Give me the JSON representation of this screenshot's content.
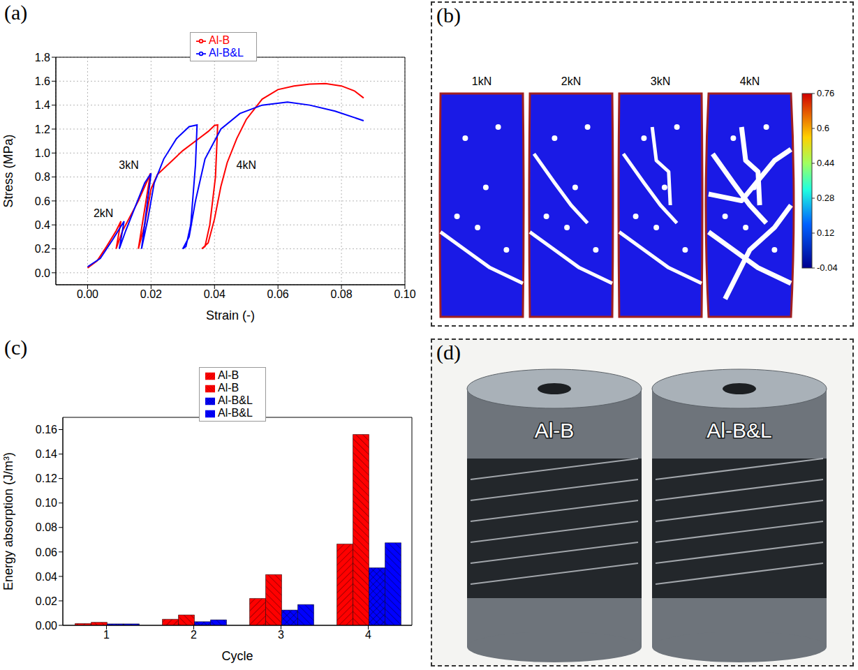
{
  "chart_data": [
    {
      "label": "(a)",
      "type": "line",
      "x_label": "Strain (-)",
      "y_label": "Stress (MPa)",
      "xlim": [
        -0.01,
        0.1
      ],
      "xticks": [
        {
          "value": 0,
          "label": "0.00"
        },
        0.02,
        0.04,
        0.06,
        0.08,
        {
          "value": 0.1,
          "label": "0.10"
        }
      ],
      "ylim": [
        -0.1,
        1.8
      ],
      "yticks": [
        {
          "value": 0,
          "label": "0.0"
        },
        0.2,
        0.4,
        0.6,
        0.8,
        {
          "value": 1,
          "label": "1.0"
        },
        1.2,
        1.4,
        1.6,
        1.8
      ],
      "grid": true,
      "legend": "top",
      "series": [
        {
          "name": "Al-B",
          "color": "#ff0000",
          "x": [
            0,
            0.003,
            0.006,
            0.009,
            0.0105,
            0.009,
            0.011,
            0.013,
            0.016,
            0.019,
            0.0198,
            0.016,
            0.018,
            0.02,
            0.022,
            0.026,
            0.03,
            0.035,
            0.038,
            0.04,
            0.041,
            0.0403,
            0.0385,
            0.037,
            0.036,
            0.038,
            0.04,
            0.042,
            0.044,
            0.047,
            0.05,
            0.055,
            0.06,
            0.065,
            0.07,
            0.075,
            0.08,
            0.084,
            0.087
          ],
          "values": [
            0.04,
            0.1,
            0.22,
            0.35,
            0.43,
            0.2,
            0.35,
            0.45,
            0.6,
            0.78,
            0.83,
            0.2,
            0.4,
            0.7,
            0.82,
            0.92,
            1.02,
            1.12,
            1.18,
            1.23,
            1.235,
            0.8,
            0.4,
            0.22,
            0.2,
            0.25,
            0.45,
            0.72,
            0.92,
            1.12,
            1.28,
            1.45,
            1.53,
            1.56,
            1.575,
            1.58,
            1.56,
            1.52,
            1.46
          ]
        },
        {
          "name": "Al-B&L",
          "color": "#0000ff",
          "x": [
            0,
            0.004,
            0.008,
            0.0115,
            0.01,
            0.012,
            0.015,
            0.018,
            0.02,
            0.017,
            0.019,
            0.021,
            0.024,
            0.028,
            0.032,
            0.0345,
            0.034,
            0.0325,
            0.031,
            0.03,
            0.032,
            0.034,
            0.037,
            0.042,
            0.048,
            0.055,
            0.063,
            0.07,
            0.078,
            0.087
          ],
          "values": [
            0.05,
            0.12,
            0.28,
            0.43,
            0.2,
            0.35,
            0.55,
            0.75,
            0.83,
            0.2,
            0.45,
            0.75,
            0.95,
            1.12,
            1.22,
            1.235,
            0.9,
            0.4,
            0.22,
            0.2,
            0.3,
            0.6,
            0.95,
            1.2,
            1.33,
            1.4,
            1.425,
            1.4,
            1.35,
            1.27
          ]
        }
      ],
      "annotations": [
        {
          "text": "2kN",
          "x": 0.005,
          "y": 0.5
        },
        {
          "text": "3kN",
          "x": 0.013,
          "y": 0.9
        },
        {
          "text": "4kN",
          "x": 0.05,
          "y": 0.9
        }
      ]
    },
    {
      "label": "(c)",
      "type": "bar",
      "x_label": "Cycle",
      "y_label": "Energy absorption (J/m³)",
      "categories": [
        "1",
        "2",
        "3",
        "4"
      ],
      "ylim": [
        0,
        0.17
      ],
      "yticks": [
        {
          "value": 0,
          "label": "0.00"
        },
        0.02,
        0.04,
        0.06,
        0.08,
        {
          "value": 0.1,
          "label": "0.10"
        },
        0.12,
        0.14,
        0.16
      ],
      "legend": "top",
      "series": [
        {
          "name": "Al-B",
          "color": "#ff0000",
          "values": [
            0.0015,
            0.005,
            0.022,
            0.0665
          ]
        },
        {
          "name": "Al-B",
          "color": "#ff0000",
          "values": [
            0.0025,
            0.0085,
            0.0415,
            0.156
          ]
        },
        {
          "name": "Al-B&L",
          "color": "#0000ff",
          "values": [
            0.0012,
            0.003,
            0.0125,
            0.047
          ]
        },
        {
          "name": "Al-B&L",
          "color": "#0000ff",
          "values": [
            0.0012,
            0.0045,
            0.017,
            0.0675
          ]
        }
      ]
    }
  ],
  "images": [
    {
      "label": "(b)",
      "type": "image",
      "loads": [
        "1kN",
        "2kN",
        "3kN",
        "4kN"
      ],
      "colorbar": {
        "range": [
          -0.04,
          0.76
        ],
        "ticks": [
          0.76,
          0.6,
          0.44,
          0.28,
          0.12,
          -0.04
        ]
      }
    },
    {
      "label": "(d)",
      "type": "photo",
      "specimens": [
        "Al-B",
        "Al-B&L"
      ]
    }
  ]
}
